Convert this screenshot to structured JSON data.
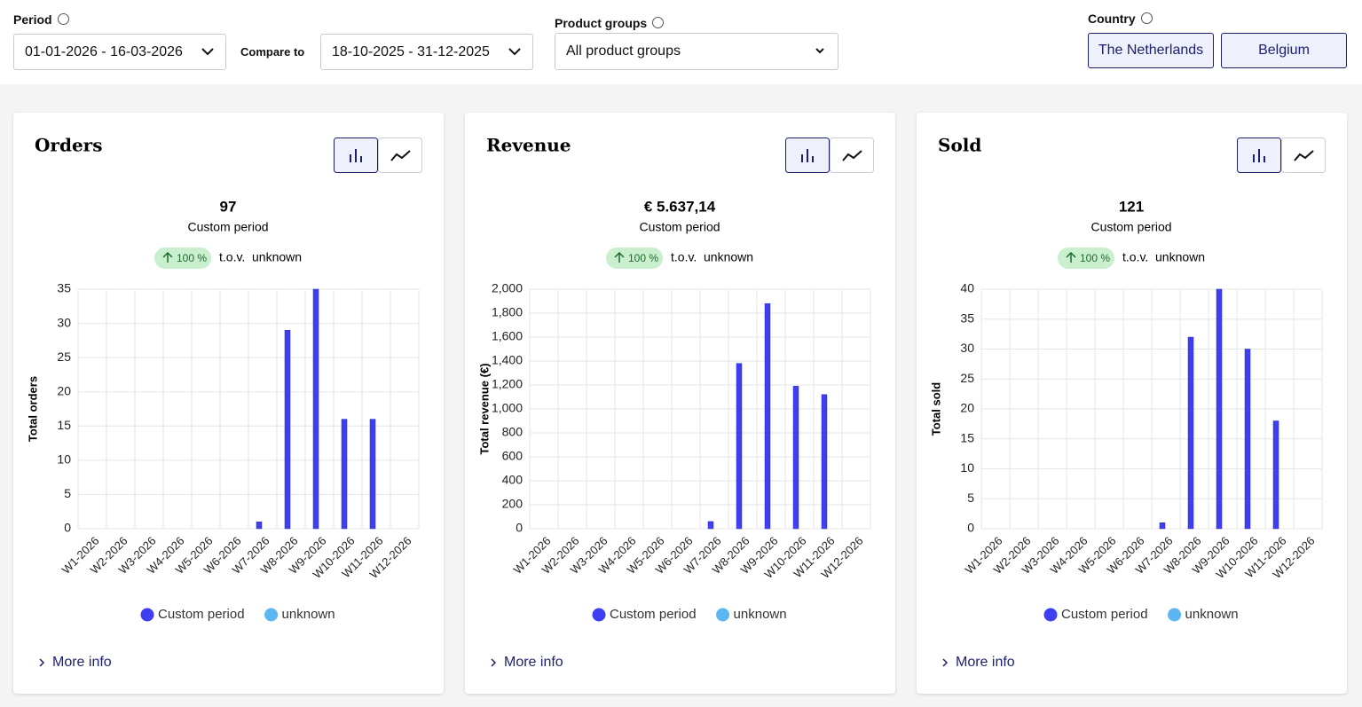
{
  "filters": {
    "period_label": "Period",
    "period_value": "01-01-2026 - 16-03-2026",
    "compare_label": "Compare to",
    "compare_value": "18-10-2025 - 31-12-2025",
    "product_groups_label": "Product groups",
    "product_groups_value": "All product groups",
    "country_label": "Country",
    "countries": [
      "The Netherlands",
      "Belgium"
    ]
  },
  "cards": [
    {
      "title": "Orders",
      "total": "97",
      "period_label": "Custom period",
      "change": "100 %",
      "tov": "t.o.v.",
      "compare_name": "unknown",
      "more_info": "More info",
      "chart_data": {
        "type": "bar",
        "ylabel": "Total orders",
        "categories": [
          "W1-2026",
          "W2-2026",
          "W3-2026",
          "W4-2026",
          "W5-2026",
          "W6-2026",
          "W7-2026",
          "W8-2026",
          "W9-2026",
          "W10-2026",
          "W11-2026",
          "W12-2026"
        ],
        "series": [
          {
            "name": "Custom period",
            "color": "#3f3ff2",
            "values": [
              0,
              0,
              0,
              0,
              0,
              0,
              1,
              29,
              35,
              16,
              16,
              0
            ]
          },
          {
            "name": "unknown",
            "color": "#5cb6f2",
            "values": [
              0,
              0,
              0,
              0,
              0,
              0,
              0,
              0,
              0,
              0,
              0,
              0
            ]
          }
        ],
        "ylim": [
          0,
          35
        ],
        "yticks": [
          0,
          5,
          10,
          15,
          20,
          25,
          30,
          35
        ],
        "grid": true
      }
    },
    {
      "title": "Revenue",
      "total": "€ 5.637,14",
      "period_label": "Custom period",
      "change": "100 %",
      "tov": "t.o.v.",
      "compare_name": "unknown",
      "more_info": "More info",
      "chart_data": {
        "type": "bar",
        "ylabel": "Total revenue (€)",
        "categories": [
          "W1-2026",
          "W2-2026",
          "W3-2026",
          "W4-2026",
          "W5-2026",
          "W6-2026",
          "W7-2026",
          "W8-2026",
          "W9-2026",
          "W10-2026",
          "W11-2026",
          "W12-2026"
        ],
        "series": [
          {
            "name": "Custom period",
            "color": "#3f3ff2",
            "values": [
              0,
              0,
              0,
              0,
              0,
              0,
              60,
              1380,
              1880,
              1190,
              1120,
              0
            ]
          },
          {
            "name": "unknown",
            "color": "#5cb6f2",
            "values": [
              0,
              0,
              0,
              0,
              0,
              0,
              0,
              0,
              0,
              0,
              0,
              0
            ]
          }
        ],
        "ylim": [
          0,
          2000
        ],
        "yticks": [
          0,
          200,
          400,
          600,
          800,
          {
            "value": 1000,
            "label": "1,000"
          },
          {
            "value": 1200,
            "label": "1,200"
          },
          {
            "value": 1400,
            "label": "1,400"
          },
          {
            "value": 1600,
            "label": "1,600"
          },
          {
            "value": 1800,
            "label": "1,800"
          },
          {
            "value": 2000,
            "label": "2,000"
          }
        ],
        "grid": true
      }
    },
    {
      "title": "Sold",
      "total": "121",
      "period_label": "Custom period",
      "change": "100 %",
      "tov": "t.o.v.",
      "compare_name": "unknown",
      "more_info": "More info",
      "chart_data": {
        "type": "bar",
        "ylabel": "Total sold",
        "categories": [
          "W1-2026",
          "W2-2026",
          "W3-2026",
          "W4-2026",
          "W5-2026",
          "W6-2026",
          "W7-2026",
          "W8-2026",
          "W9-2026",
          "W10-2026",
          "W11-2026",
          "W12-2026"
        ],
        "series": [
          {
            "name": "Custom period",
            "color": "#3f3ff2",
            "values": [
              0,
              0,
              0,
              0,
              0,
              0,
              1,
              32,
              40,
              30,
              18,
              0
            ]
          },
          {
            "name": "unknown",
            "color": "#5cb6f2",
            "values": [
              0,
              0,
              0,
              0,
              0,
              0,
              0,
              0,
              0,
              0,
              0,
              0
            ]
          }
        ],
        "ylim": [
          0,
          40
        ],
        "yticks": [
          0,
          5,
          10,
          15,
          20,
          25,
          30,
          35,
          40
        ],
        "grid": true
      }
    }
  ]
}
